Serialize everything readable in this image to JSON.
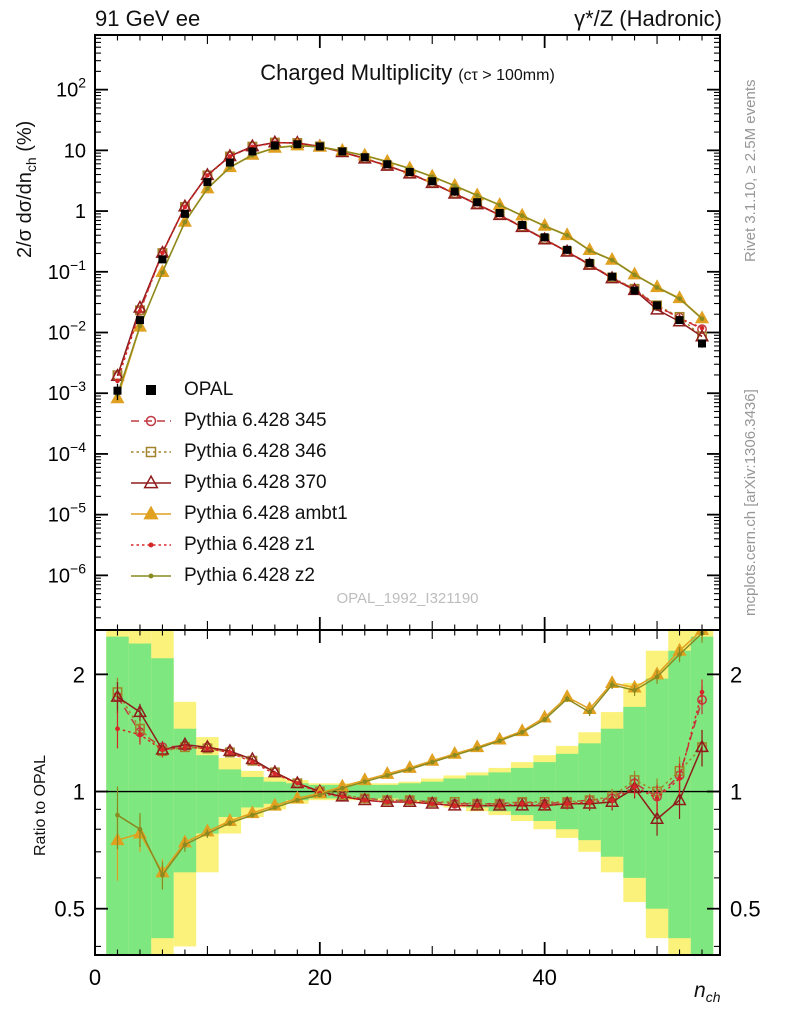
{
  "header": {
    "left": "91 GeV ee",
    "right": "γ*/Z (Hadronic)"
  },
  "side_notes": {
    "events": "Rivet 3.1.10, ≥ 2.5M events",
    "source": "mcplots.cern.ch [arXiv:1306.3436]"
  },
  "watermark": "OPAL_1992_I321190",
  "axes": {
    "main_ylabel_parts": [
      "2/σ dσ/dn",
      "ch",
      " (%)"
    ],
    "ratio_ylabel": "Ratio to OPAL",
    "xlabel_parts": [
      "n",
      "ch"
    ]
  },
  "chart_data": {
    "type": "line",
    "title": "Charged Multiplicity",
    "subtitle": "(cτ > 100mm)",
    "xlabel": "n_ch",
    "ylabel": "2/σ dσ/dn_ch (%)",
    "ratio_ylabel": "Ratio to OPAL",
    "x": [
      2,
      4,
      6,
      8,
      10,
      12,
      14,
      16,
      18,
      20,
      22,
      24,
      26,
      28,
      30,
      32,
      34,
      36,
      38,
      40,
      42,
      44,
      46,
      48,
      50,
      52,
      54
    ],
    "xlim": [
      0,
      55.6
    ],
    "main_ylog_range": [
      -6.9,
      2.9
    ],
    "ratio_ylog_range": [
      -0.42,
      0.415
    ],
    "xticks": [
      0,
      20,
      40
    ],
    "main_ytick_exponents": [
      2,
      1,
      0,
      -1,
      -2,
      -3,
      -4,
      -5,
      -6
    ],
    "ratio_yticks": [
      2,
      1,
      0.5
    ],
    "ratio_ytick_minors": [
      0.4,
      0.6,
      0.7,
      0.8,
      0.9
    ],
    "reference": {
      "name": "OPAL",
      "color": "#000000",
      "marker": "square-filled",
      "values": [
        0.0011,
        0.016,
        0.16,
        0.9,
        3.0,
        6.3,
        9.6,
        12.0,
        12.6,
        11.6,
        9.6,
        7.7,
        5.9,
        4.4,
        3.1,
        2.1,
        1.4,
        0.93,
        0.59,
        0.37,
        0.23,
        0.14,
        0.083,
        0.049,
        0.028,
        0.016,
        0.0066
      ],
      "err_frac": [
        0.3,
        0.12,
        0.05,
        0.03,
        0.02,
        0.015,
        0.012,
        0.01,
        0.01,
        0.01,
        0.01,
        0.01,
        0.01,
        0.01,
        0.012,
        0.015,
        0.018,
        0.02,
        0.025,
        0.03,
        0.035,
        0.04,
        0.05,
        0.06,
        0.08,
        0.1,
        0.15
      ]
    },
    "ratio_err": [
      0.16,
      0.08,
      0.05,
      0.03,
      0.02,
      0.015,
      0.012,
      0.01,
      0.008,
      0.007,
      0.007,
      0.007,
      0.008,
      0.009,
      0.01,
      0.012,
      0.014,
      0.017,
      0.02,
      0.024,
      0.03,
      0.037,
      0.046,
      0.06,
      0.08,
      0.1,
      0.14
    ],
    "series": [
      {
        "name": "Pythia 6.428 345",
        "color": "#c03a44",
        "line": "dash",
        "marker": "circle-open",
        "ratio": [
          1.75,
          1.42,
          1.3,
          1.31,
          1.3,
          1.27,
          1.2,
          1.12,
          1.05,
          1.0,
          0.97,
          0.96,
          0.95,
          0.95,
          0.94,
          0.93,
          0.93,
          0.93,
          0.94,
          0.93,
          0.94,
          0.95,
          0.96,
          1.05,
          0.97,
          1.1,
          1.72
        ]
      },
      {
        "name": "Pythia 6.428 346",
        "color": "#a1832a",
        "line": "dot",
        "marker": "square-open",
        "ratio": [
          1.8,
          1.45,
          1.27,
          1.3,
          1.29,
          1.26,
          1.2,
          1.12,
          1.05,
          1.0,
          0.98,
          0.96,
          0.95,
          0.95,
          0.94,
          0.94,
          0.93,
          0.93,
          0.94,
          0.94,
          0.94,
          0.95,
          0.97,
          1.07,
          1.0,
          1.13,
          1.3
        ]
      },
      {
        "name": "Pythia 6.428 370",
        "color": "#8f1d1d",
        "line": "solid",
        "marker": "triangle-open",
        "ratio": [
          1.75,
          1.6,
          1.28,
          1.32,
          1.3,
          1.27,
          1.21,
          1.12,
          1.05,
          1.0,
          0.97,
          0.95,
          0.94,
          0.94,
          0.93,
          0.92,
          0.92,
          0.92,
          0.92,
          0.92,
          0.93,
          0.93,
          0.94,
          1.02,
          0.85,
          0.95,
          1.3
        ]
      },
      {
        "name": "Pythia 6.428 ambt1",
        "color": "#e0a020",
        "line": "solid",
        "marker": "triangle-filled",
        "ratio": [
          0.75,
          0.78,
          0.62,
          0.74,
          0.79,
          0.84,
          0.88,
          0.92,
          0.96,
          0.99,
          1.03,
          1.07,
          1.11,
          1.15,
          1.2,
          1.25,
          1.3,
          1.36,
          1.43,
          1.55,
          1.75,
          1.63,
          1.9,
          1.85,
          2.0,
          2.3,
          2.6
        ]
      },
      {
        "name": "Pythia 6.428 z1",
        "color": "#d62728",
        "line": "dot",
        "marker": "dot",
        "ratio": [
          1.45,
          1.4,
          1.28,
          1.3,
          1.29,
          1.26,
          1.19,
          1.11,
          1.05,
          0.99,
          0.97,
          0.95,
          0.94,
          0.94,
          0.93,
          0.92,
          0.92,
          0.92,
          0.93,
          0.92,
          0.93,
          0.94,
          0.95,
          1.03,
          0.96,
          1.08,
          1.8
        ]
      },
      {
        "name": "Pythia 6.428 z2",
        "color": "#8a8a20",
        "line": "solid",
        "marker": "dot",
        "ratio": [
          0.87,
          0.8,
          0.61,
          0.73,
          0.78,
          0.83,
          0.87,
          0.91,
          0.95,
          0.98,
          1.02,
          1.06,
          1.1,
          1.14,
          1.19,
          1.24,
          1.29,
          1.35,
          1.42,
          1.53,
          1.73,
          1.6,
          1.88,
          1.82,
          1.97,
          2.25,
          2.55
        ]
      }
    ],
    "bands": {
      "outer_color": "#fbf27b",
      "inner_color": "#7fe77f",
      "bin_half_width": 1,
      "outer_lo": [
        0.36,
        0.36,
        0.36,
        0.4,
        0.62,
        0.78,
        0.86,
        0.9,
        0.93,
        0.95,
        0.95,
        0.95,
        0.95,
        0.94,
        0.93,
        0.91,
        0.89,
        0.87,
        0.84,
        0.8,
        0.76,
        0.7,
        0.62,
        0.52,
        0.42,
        0.36,
        0.36
      ],
      "outer_hi": [
        2.6,
        2.6,
        2.6,
        1.7,
        1.38,
        1.22,
        1.13,
        1.09,
        1.07,
        1.05,
        1.05,
        1.05,
        1.05,
        1.06,
        1.08,
        1.1,
        1.12,
        1.15,
        1.19,
        1.24,
        1.31,
        1.42,
        1.6,
        1.9,
        2.3,
        2.6,
        2.6
      ],
      "inner_lo": [
        0.36,
        0.38,
        0.42,
        0.62,
        0.78,
        0.86,
        0.91,
        0.93,
        0.95,
        0.96,
        0.96,
        0.96,
        0.96,
        0.95,
        0.94,
        0.93,
        0.91,
        0.89,
        0.87,
        0.84,
        0.8,
        0.75,
        0.68,
        0.6,
        0.5,
        0.42,
        0.38
      ],
      "inner_hi": [
        2.5,
        2.4,
        2.2,
        1.45,
        1.24,
        1.14,
        1.09,
        1.06,
        1.05,
        1.04,
        1.04,
        1.04,
        1.04,
        1.05,
        1.06,
        1.08,
        1.1,
        1.12,
        1.15,
        1.19,
        1.25,
        1.33,
        1.45,
        1.65,
        1.95,
        2.3,
        2.5
      ]
    }
  }
}
